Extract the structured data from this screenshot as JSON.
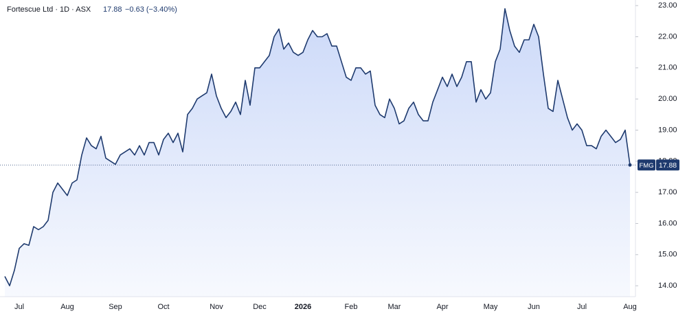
{
  "chart_data": {
    "type": "area",
    "title": "Fortescue Ltd · 1D · ASX",
    "last_label": "17.88",
    "change_label": "−0.63 (−3.40%)",
    "symbol": "FMG",
    "categories": [
      null,
      null,
      null,
      "Jul",
      null,
      null,
      null,
      null,
      null,
      null,
      null,
      null,
      null,
      "Aug",
      null,
      null,
      null,
      null,
      null,
      null,
      null,
      null,
      null,
      "Sep",
      null,
      null,
      null,
      null,
      null,
      null,
      null,
      null,
      null,
      "Oct",
      null,
      null,
      null,
      null,
      null,
      null,
      null,
      null,
      null,
      null,
      "Nov",
      null,
      null,
      null,
      null,
      null,
      null,
      null,
      null,
      "Dec",
      null,
      null,
      null,
      null,
      null,
      null,
      null,
      null,
      "2026",
      null,
      null,
      null,
      null,
      null,
      null,
      null,
      null,
      null,
      "Feb",
      null,
      null,
      null,
      null,
      null,
      null,
      null,
      null,
      "Mar",
      null,
      null,
      null,
      null,
      null,
      null,
      null,
      null,
      null,
      "Apr",
      null,
      null,
      null,
      null,
      null,
      null,
      null,
      null,
      null,
      "May",
      null,
      null,
      null,
      null,
      null,
      null,
      null,
      null,
      "Jun",
      null,
      null,
      null,
      null,
      null,
      null,
      null,
      null,
      null,
      "Jul",
      null,
      null,
      null,
      null,
      null,
      null,
      null,
      null,
      null,
      "Aug"
    ],
    "values": [
      14.3,
      14.0,
      14.5,
      15.2,
      15.35,
      15.3,
      15.9,
      15.8,
      15.9,
      16.1,
      17.0,
      17.3,
      17.1,
      16.9,
      17.3,
      17.4,
      18.2,
      18.75,
      18.5,
      18.4,
      18.8,
      18.1,
      18.0,
      17.9,
      18.2,
      18.3,
      18.4,
      18.2,
      18.5,
      18.2,
      18.6,
      18.6,
      18.2,
      18.7,
      18.9,
      18.6,
      18.9,
      18.3,
      19.5,
      19.7,
      20.0,
      20.1,
      20.2,
      20.8,
      20.1,
      19.7,
      19.4,
      19.6,
      19.9,
      19.5,
      20.6,
      19.8,
      21.0,
      21.0,
      21.2,
      21.4,
      22.0,
      22.25,
      21.6,
      21.8,
      21.5,
      21.4,
      21.5,
      21.9,
      22.2,
      22.0,
      22.0,
      22.1,
      21.7,
      21.7,
      21.2,
      20.7,
      20.6,
      21.0,
      21.0,
      20.8,
      20.9,
      19.8,
      19.5,
      19.4,
      20.0,
      19.7,
      19.2,
      19.3,
      19.7,
      19.9,
      19.5,
      19.3,
      19.3,
      19.9,
      20.3,
      20.7,
      20.4,
      20.8,
      20.4,
      20.7,
      21.2,
      21.2,
      19.9,
      20.3,
      20.0,
      20.2,
      21.2,
      21.6,
      22.9,
      22.2,
      21.7,
      21.5,
      21.9,
      21.9,
      22.4,
      22.0,
      20.8,
      19.7,
      19.6,
      20.6,
      20.0,
      19.4,
      19.0,
      19.2,
      19.0,
      18.5,
      18.5,
      18.4,
      18.8,
      19.0,
      18.8,
      18.6,
      18.7,
      19.0,
      17.88
    ],
    "color": "#1e3a6e",
    "fill_color": "#c9d7f8",
    "ylim": [
      13.65,
      23.18
    ],
    "yticks": [
      {
        "value": 14,
        "label": "14.00"
      },
      {
        "value": 15,
        "label": "15.00"
      },
      {
        "value": 16,
        "label": "16.00"
      },
      {
        "value": 17,
        "label": "17.00"
      },
      {
        "value": 18,
        "label": "18.00"
      },
      {
        "value": 19,
        "label": "19.00"
      },
      {
        "value": 20,
        "label": "20.00"
      },
      {
        "value": 21,
        "label": "21.00"
      },
      {
        "value": 22,
        "label": "22.00"
      },
      {
        "value": 23,
        "label": "23.00"
      }
    ],
    "grid": false
  }
}
